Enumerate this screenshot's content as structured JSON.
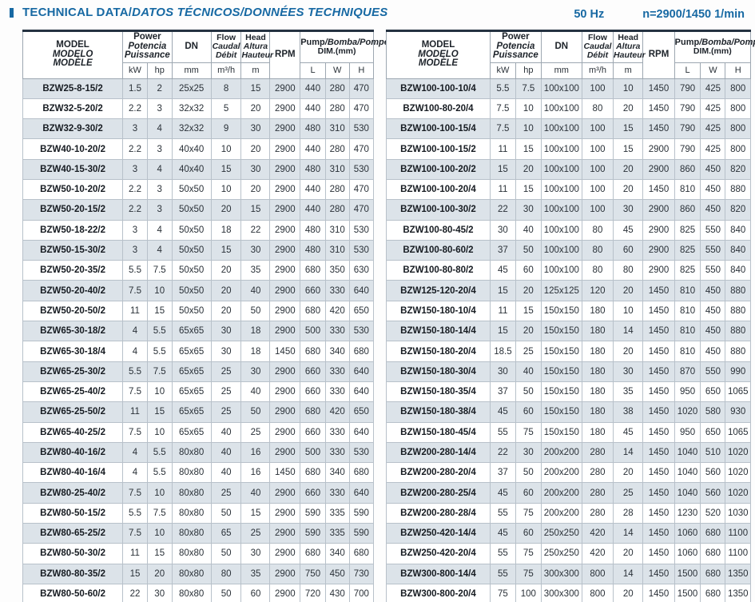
{
  "theme": {
    "accent": "#1769a3",
    "row_shade": "#dce3e9",
    "table_top_border": "#253241"
  },
  "header": {
    "title_main": "TECHNICAL DATA/",
    "title_italic": "DATOS TÉCNICOS/DONNÉES TECHNIQUES",
    "frequency": "50 Hz",
    "speed": "n=2900/1450 1/min"
  },
  "columns": {
    "model": [
      "MODEL",
      "MODELO",
      "MODÈLE"
    ],
    "power": [
      "Power",
      "Potencia",
      "Puissance"
    ],
    "dn": "DN",
    "flow": [
      "Flow",
      "Caudal",
      "Débit"
    ],
    "head": [
      "Head",
      "Altura",
      "Hauteur"
    ],
    "rpm": "RPM",
    "pump_dim_upright": "Pump",
    "pump_dim_italic": "/Bomba/Pompe",
    "pump_dim_sub": "DIM.(mm)",
    "units": {
      "kw": "kW",
      "hp": "hp",
      "dn": "mm",
      "flow": "m³/h",
      "head": "m",
      "l": "L",
      "w": "W",
      "h": "H"
    }
  },
  "tables": {
    "left": {
      "rows": [
        [
          "BZW25-8-15/2",
          "1.5",
          "2",
          "25x25",
          "8",
          "15",
          "2900",
          "440",
          "280",
          "470"
        ],
        [
          "BZW32-5-20/2",
          "2.2",
          "3",
          "32x32",
          "5",
          "20",
          "2900",
          "440",
          "280",
          "470"
        ],
        [
          "BZW32-9-30/2",
          "3",
          "4",
          "32x32",
          "9",
          "30",
          "2900",
          "480",
          "310",
          "530"
        ],
        [
          "BZW40-10-20/2",
          "2.2",
          "3",
          "40x40",
          "10",
          "20",
          "2900",
          "440",
          "280",
          "470"
        ],
        [
          "BZW40-15-30/2",
          "3",
          "4",
          "40x40",
          "15",
          "30",
          "2900",
          "480",
          "310",
          "530"
        ],
        [
          "BZW50-10-20/2",
          "2.2",
          "3",
          "50x50",
          "10",
          "20",
          "2900",
          "440",
          "280",
          "470"
        ],
        [
          "BZW50-20-15/2",
          "2.2",
          "3",
          "50x50",
          "20",
          "15",
          "2900",
          "440",
          "280",
          "470"
        ],
        [
          "BZW50-18-22/2",
          "3",
          "4",
          "50x50",
          "18",
          "22",
          "2900",
          "480",
          "310",
          "530"
        ],
        [
          "BZW50-15-30/2",
          "3",
          "4",
          "50x50",
          "15",
          "30",
          "2900",
          "480",
          "310",
          "530"
        ],
        [
          "BZW50-20-35/2",
          "5.5",
          "7.5",
          "50x50",
          "20",
          "35",
          "2900",
          "680",
          "350",
          "630"
        ],
        [
          "BZW50-20-40/2",
          "7.5",
          "10",
          "50x50",
          "20",
          "40",
          "2900",
          "660",
          "330",
          "640"
        ],
        [
          "BZW50-20-50/2",
          "11",
          "15",
          "50x50",
          "20",
          "50",
          "2900",
          "680",
          "420",
          "650"
        ],
        [
          "BZW65-30-18/2",
          "4",
          "5.5",
          "65x65",
          "30",
          "18",
          "2900",
          "500",
          "330",
          "530"
        ],
        [
          "BZW65-30-18/4",
          "4",
          "5.5",
          "65x65",
          "30",
          "18",
          "1450",
          "680",
          "340",
          "680"
        ],
        [
          "BZW65-25-30/2",
          "5.5",
          "7.5",
          "65x65",
          "25",
          "30",
          "2900",
          "660",
          "330",
          "640"
        ],
        [
          "BZW65-25-40/2",
          "7.5",
          "10",
          "65x65",
          "25",
          "40",
          "2900",
          "660",
          "330",
          "640"
        ],
        [
          "BZW65-25-50/2",
          "11",
          "15",
          "65x65",
          "25",
          "50",
          "2900",
          "680",
          "420",
          "650"
        ],
        [
          "BZW65-40-25/2",
          "7.5",
          "10",
          "65x65",
          "40",
          "25",
          "2900",
          "660",
          "330",
          "640"
        ],
        [
          "BZW80-40-16/2",
          "4",
          "5.5",
          "80x80",
          "40",
          "16",
          "2900",
          "500",
          "330",
          "530"
        ],
        [
          "BZW80-40-16/4",
          "4",
          "5.5",
          "80x80",
          "40",
          "16",
          "1450",
          "680",
          "340",
          "680"
        ],
        [
          "BZW80-25-40/2",
          "7.5",
          "10",
          "80x80",
          "25",
          "40",
          "2900",
          "660",
          "330",
          "640"
        ],
        [
          "BZW80-50-15/2",
          "5.5",
          "7.5",
          "80x80",
          "50",
          "15",
          "2900",
          "590",
          "335",
          "590"
        ],
        [
          "BZW80-65-25/2",
          "7.5",
          "10",
          "80x80",
          "65",
          "25",
          "2900",
          "590",
          "335",
          "590"
        ],
        [
          "BZW80-50-30/2",
          "11",
          "15",
          "80x80",
          "50",
          "30",
          "2900",
          "680",
          "340",
          "680"
        ],
        [
          "BZW80-80-35/2",
          "15",
          "20",
          "80x80",
          "80",
          "35",
          "2900",
          "750",
          "450",
          "730"
        ],
        [
          "BZW80-50-60/2",
          "22",
          "30",
          "80x80",
          "50",
          "60",
          "2900",
          "720",
          "430",
          "700"
        ]
      ]
    },
    "right": {
      "rows": [
        [
          "BZW100-100-10/4",
          "5.5",
          "7.5",
          "100x100",
          "100",
          "10",
          "1450",
          "790",
          "425",
          "800"
        ],
        [
          "BZW100-80-20/4",
          "7.5",
          "10",
          "100x100",
          "80",
          "20",
          "1450",
          "790",
          "425",
          "800"
        ],
        [
          "BZW100-100-15/4",
          "7.5",
          "10",
          "100x100",
          "100",
          "15",
          "1450",
          "790",
          "425",
          "800"
        ],
        [
          "BZW100-100-15/2",
          "11",
          "15",
          "100x100",
          "100",
          "15",
          "2900",
          "790",
          "425",
          "800"
        ],
        [
          "BZW100-100-20/2",
          "15",
          "20",
          "100x100",
          "100",
          "20",
          "2900",
          "860",
          "450",
          "820"
        ],
        [
          "BZW100-100-20/4",
          "11",
          "15",
          "100x100",
          "100",
          "20",
          "1450",
          "810",
          "450",
          "880"
        ],
        [
          "BZW100-100-30/2",
          "22",
          "30",
          "100x100",
          "100",
          "30",
          "2900",
          "860",
          "450",
          "820"
        ],
        [
          "BZW100-80-45/2",
          "30",
          "40",
          "100x100",
          "80",
          "45",
          "2900",
          "825",
          "550",
          "840"
        ],
        [
          "BZW100-80-60/2",
          "37",
          "50",
          "100x100",
          "80",
          "60",
          "2900",
          "825",
          "550",
          "840"
        ],
        [
          "BZW100-80-80/2",
          "45",
          "60",
          "100x100",
          "80",
          "80",
          "2900",
          "825",
          "550",
          "840"
        ],
        [
          "BZW125-120-20/4",
          "15",
          "20",
          "125x125",
          "120",
          "20",
          "1450",
          "810",
          "450",
          "880"
        ],
        [
          "BZW150-180-10/4",
          "11",
          "15",
          "150x150",
          "180",
          "10",
          "1450",
          "810",
          "450",
          "880"
        ],
        [
          "BZW150-180-14/4",
          "15",
          "20",
          "150x150",
          "180",
          "14",
          "1450",
          "810",
          "450",
          "880"
        ],
        [
          "BZW150-180-20/4",
          "18.5",
          "25",
          "150x150",
          "180",
          "20",
          "1450",
          "810",
          "450",
          "880"
        ],
        [
          "BZW150-180-30/4",
          "30",
          "40",
          "150x150",
          "180",
          "30",
          "1450",
          "870",
          "550",
          "990"
        ],
        [
          "BZW150-180-35/4",
          "37",
          "50",
          "150x150",
          "180",
          "35",
          "1450",
          "950",
          "650",
          "1065"
        ],
        [
          "BZW150-180-38/4",
          "45",
          "60",
          "150x150",
          "180",
          "38",
          "1450",
          "1020",
          "580",
          "930"
        ],
        [
          "BZW150-180-45/4",
          "55",
          "75",
          "150x150",
          "180",
          "45",
          "1450",
          "950",
          "650",
          "1065"
        ],
        [
          "BZW200-280-14/4",
          "22",
          "30",
          "200x200",
          "280",
          "14",
          "1450",
          "1040",
          "510",
          "1020"
        ],
        [
          "BZW200-280-20/4",
          "37",
          "50",
          "200x200",
          "280",
          "20",
          "1450",
          "1040",
          "560",
          "1020"
        ],
        [
          "BZW200-280-25/4",
          "45",
          "60",
          "200x200",
          "280",
          "25",
          "1450",
          "1040",
          "560",
          "1020"
        ],
        [
          "BZW200-280-28/4",
          "55",
          "75",
          "200x200",
          "280",
          "28",
          "1450",
          "1230",
          "520",
          "1030"
        ],
        [
          "BZW250-420-14/4",
          "45",
          "60",
          "250x250",
          "420",
          "14",
          "1450",
          "1060",
          "680",
          "1100"
        ],
        [
          "BZW250-420-20/4",
          "55",
          "75",
          "250x250",
          "420",
          "20",
          "1450",
          "1060",
          "680",
          "1100"
        ],
        [
          "BZW300-800-14/4",
          "55",
          "75",
          "300x300",
          "800",
          "14",
          "1450",
          "1500",
          "680",
          "1350"
        ],
        [
          "BZW300-800-20/4",
          "75",
          "100",
          "300x300",
          "800",
          "20",
          "1450",
          "1500",
          "680",
          "1350"
        ]
      ]
    }
  }
}
